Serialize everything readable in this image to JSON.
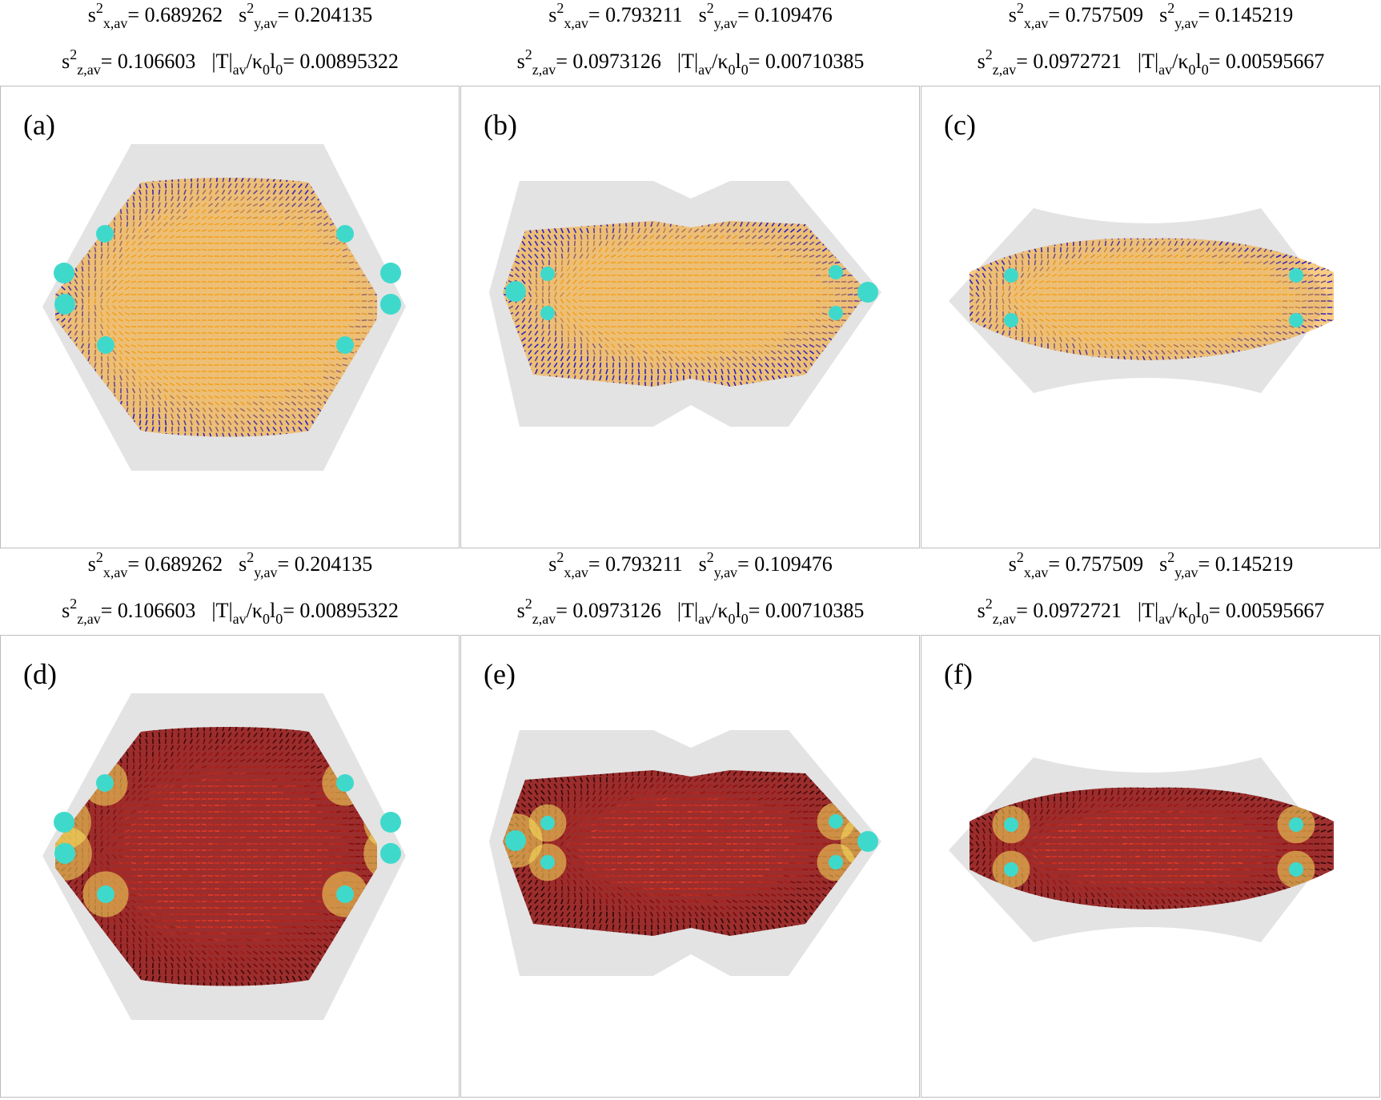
{
  "figure": {
    "panels": [
      {
        "label": "(a)",
        "shape": "hexagon",
        "map": "blue-orange",
        "s2x": "0.689262",
        "s2y": "0.204135",
        "s2z": "0.106603",
        "T": "0.00895322"
      },
      {
        "label": "(b)",
        "shape": "notched",
        "map": "blue-orange",
        "s2x": "0.793211",
        "s2y": "0.109476",
        "s2z": "0.0973126",
        "T": "0.00710385"
      },
      {
        "label": "(c)",
        "shape": "curved",
        "map": "blue-orange",
        "s2x": "0.757509",
        "s2y": "0.145219",
        "s2z": "0.0972721",
        "T": "0.00595667"
      },
      {
        "label": "(d)",
        "shape": "hexagon",
        "map": "heat",
        "s2x": "0.689262",
        "s2y": "0.204135",
        "s2z": "0.106603",
        "T": "0.00895322"
      },
      {
        "label": "(e)",
        "shape": "notched",
        "map": "heat",
        "s2x": "0.793211",
        "s2y": "0.109476",
        "s2z": "0.0973126",
        "T": "0.00710385"
      },
      {
        "label": "(f)",
        "shape": "curved",
        "map": "heat",
        "s2x": "0.757509",
        "s2y": "0.145219",
        "s2z": "0.0972721",
        "T": "0.00595667"
      }
    ],
    "colors": {
      "domain": "#e3e3e3",
      "defect": "#3fd9cc",
      "orange": "#f5a21e",
      "blue": "#2a1fc4",
      "dark_red": "#8e0d0d",
      "red": "#d8321e",
      "yellow": "#f7e25c",
      "near_black": "#2a0606"
    }
  }
}
